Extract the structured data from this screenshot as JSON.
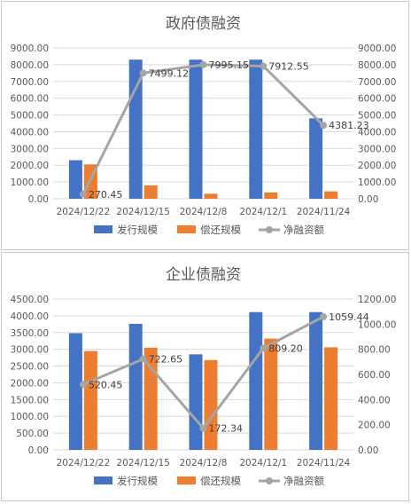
{
  "colors": {
    "issue": "#4472C4",
    "repay": "#ED7D31",
    "net": "#A5A5A5",
    "grid": "#D9D9D9",
    "text": "#595959"
  },
  "chart_data": [
    {
      "type": "bar",
      "title": "政府债融资",
      "categories": [
        "2024/12/22",
        "2024/12/15",
        "2024/12/8",
        "2024/12/1",
        "2024/11/24"
      ],
      "ylim": [
        0,
        9000
      ],
      "y2lim": [
        0,
        9000
      ],
      "yticks": [
        "0.00",
        "1000.00",
        "2000.00",
        "3000.00",
        "4000.00",
        "5000.00",
        "6000.00",
        "7000.00",
        "8000.00",
        "9000.00"
      ],
      "y2ticks": [
        "0.00",
        "1000.00",
        "2000.00",
        "3000.00",
        "4000.00",
        "5000.00",
        "6000.00",
        "7000.00",
        "8000.00",
        "9000.00"
      ],
      "grid": true,
      "legend": "bottom",
      "series": [
        {
          "name": "发行规模",
          "kind": "bar",
          "axis": "left",
          "values": [
            2300,
            8300,
            8300,
            8300,
            4800
          ]
        },
        {
          "name": "偿还规模",
          "kind": "bar",
          "axis": "left",
          "values": [
            2050,
            800,
            300,
            380,
            440
          ]
        },
        {
          "name": "净融资额",
          "kind": "line",
          "axis": "right",
          "values": [
            270.45,
            7499.12,
            7995.15,
            7912.55,
            4381.23
          ],
          "labels": [
            "270.45",
            "7499.12",
            "7995.15",
            "7912.55",
            "4381.23"
          ]
        }
      ]
    },
    {
      "type": "bar",
      "title": "企业债融资",
      "categories": [
        "2024/12/22",
        "2024/12/15",
        "2024/12/8",
        "2024/12/1",
        "2024/11/24"
      ],
      "ylim": [
        0,
        4500
      ],
      "y2lim": [
        0,
        1200
      ],
      "yticks": [
        "0.00",
        "500.00",
        "1000.00",
        "1500.00",
        "2000.00",
        "2500.00",
        "3000.00",
        "3500.00",
        "4000.00",
        "4500.00"
      ],
      "y2ticks": [
        "0.00",
        "200.00",
        "400.00",
        "600.00",
        "800.00",
        "1000.00",
        "1200.00"
      ],
      "grid": true,
      "legend": "bottom",
      "series": [
        {
          "name": "发行规模",
          "kind": "bar",
          "axis": "left",
          "values": [
            3480,
            3760,
            2850,
            4110,
            4110
          ]
        },
        {
          "name": "偿还规模",
          "kind": "bar",
          "axis": "left",
          "values": [
            2950,
            3050,
            2680,
            3320,
            3060
          ]
        },
        {
          "name": "净融资额",
          "kind": "line",
          "axis": "right",
          "values": [
            520.45,
            722.65,
            172.34,
            809.2,
            1059.44
          ],
          "labels": [
            "520.45",
            "722.65",
            "172.34",
            "809.20",
            "1059.44"
          ]
        }
      ]
    }
  ]
}
